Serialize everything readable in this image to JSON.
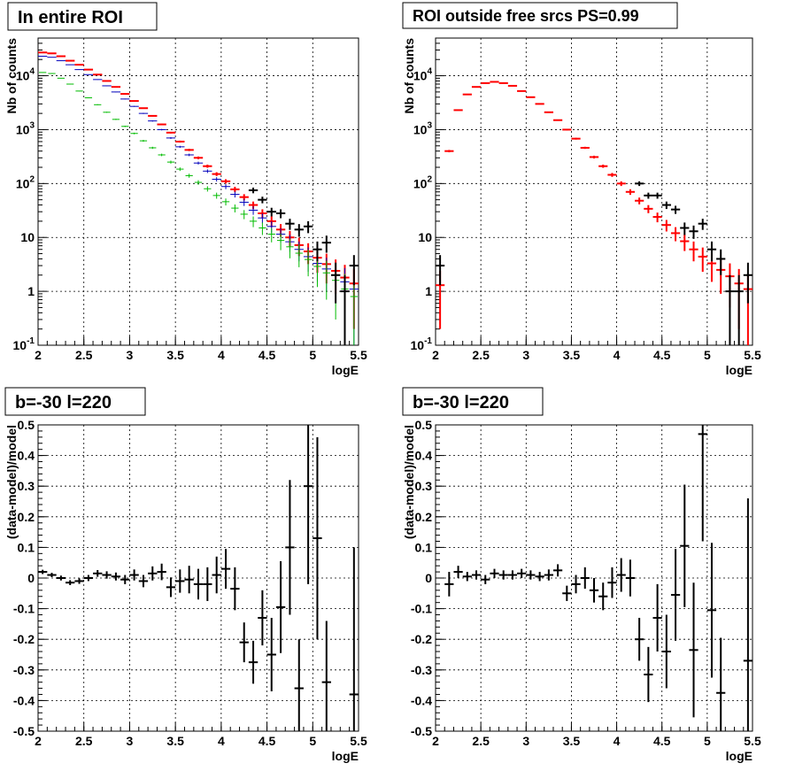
{
  "panels": {
    "top_left_title": "In entire ROI",
    "top_right_title": "ROI outside free srcs PS=0.99",
    "bottom_left_title": "b=-30 l=220",
    "bottom_right_title": "b=-30 l=220"
  },
  "chart_data": [
    {
      "type": "scatter",
      "title": "In entire ROI",
      "xlabel": "logE",
      "ylabel": "Nb of counts",
      "xlim": [
        2,
        5.5
      ],
      "ylim": [
        0.1,
        50000
      ],
      "yscale": "log",
      "grid": true,
      "x_ticks": [
        "2",
        "2.5",
        "3",
        "3.5",
        "4",
        "4.5",
        "5",
        "5.5"
      ],
      "y_ticks": [
        "10^-1",
        "1",
        "10",
        "10^2",
        "10^3",
        "10^4"
      ],
      "bin_width": 0.1,
      "series": [
        {
          "color": "#ff0000",
          "x": [
            2.05,
            2.15,
            2.25,
            2.35,
            2.45,
            2.55,
            2.65,
            2.75,
            2.85,
            2.95,
            3.05,
            3.15,
            3.25,
            3.35,
            3.45,
            3.55,
            3.65,
            3.75,
            3.85,
            3.95,
            4.05,
            4.15,
            4.25,
            4.35,
            4.45,
            4.55,
            4.65,
            4.75,
            4.85,
            4.95,
            5.05,
            5.15,
            5.25,
            5.35,
            5.45
          ],
          "values": [
            27000,
            26000,
            23000,
            19000,
            16000,
            13000,
            10500,
            8000,
            6200,
            4600,
            3400,
            2500,
            1800,
            1250,
            880,
            600,
            420,
            300,
            210,
            150,
            110,
            78,
            56,
            40,
            28,
            20,
            14,
            10,
            7.2,
            5.5,
            4.2,
            3.2,
            2.4,
            1.8,
            1.4
          ],
          "errors": [
            170,
            160,
            150,
            140,
            130,
            115,
            100,
            90,
            80,
            70,
            60,
            50,
            42,
            35,
            30,
            25,
            20,
            17,
            14,
            12,
            10,
            9,
            7.5,
            6.3,
            5.3,
            4.5,
            3.7,
            3.2,
            2.7,
            2.3,
            2,
            1.8,
            1.5,
            1.3,
            1.2
          ]
        },
        {
          "color": "#0000bb",
          "x": [
            2.05,
            2.15,
            2.25,
            2.35,
            2.45,
            2.55,
            2.65,
            2.75,
            2.85,
            2.95,
            3.05,
            3.15,
            3.25,
            3.35,
            3.45,
            3.55,
            3.65,
            3.75,
            3.85,
            3.95,
            4.05,
            4.15,
            4.25,
            4.35,
            4.45,
            4.55,
            4.65,
            4.75,
            4.85,
            4.95,
            5.05,
            5.15,
            5.25,
            5.35,
            5.45
          ],
          "values": [
            23000,
            22000,
            19000,
            16000,
            13000,
            10500,
            8500,
            6500,
            5000,
            3700,
            2700,
            2000,
            1450,
            1000,
            700,
            480,
            340,
            240,
            170,
            120,
            88,
            63,
            45,
            32,
            23,
            16,
            11.5,
            8.3,
            6,
            4.4,
            3.3,
            2.6,
            2,
            1.5,
            1.1
          ],
          "errors": [
            150,
            148,
            138,
            126,
            114,
            102,
            92,
            80,
            70,
            60,
            52,
            44,
            38,
            31,
            26,
            21,
            18,
            15,
            13,
            11,
            9.4,
            7.9,
            6.7,
            5.7,
            4.8,
            4,
            3.4,
            2.9,
            2.4,
            2.1,
            1.8,
            1.6,
            1.4,
            1.2,
            1
          ]
        },
        {
          "color": "#00bb00",
          "x": [
            2.05,
            2.15,
            2.25,
            2.35,
            2.45,
            2.55,
            2.65,
            2.75,
            2.85,
            2.95,
            3.05,
            3.15,
            3.25,
            3.35,
            3.45,
            3.55,
            3.65,
            3.75,
            3.85,
            3.95,
            4.05,
            4.15,
            4.25,
            4.35,
            4.45,
            4.55,
            4.65,
            4.75,
            4.85,
            4.95,
            5.05,
            5.15,
            5.25,
            5.35,
            5.45
          ],
          "values": [
            11500,
            11000,
            9000,
            7000,
            5200,
            3900,
            2900,
            2100,
            1550,
            1150,
            850,
            620,
            460,
            340,
            250,
            185,
            140,
            105,
            80,
            60,
            46,
            35,
            27,
            20,
            15,
            11.5,
            8.8,
            6.7,
            5.1,
            3.9,
            2.9,
            2.2,
            1.6,
            1.1,
            0.8
          ],
          "errors": [
            107,
            105,
            95,
            84,
            72,
            62,
            54,
            46,
            39,
            34,
            29,
            25,
            21,
            18,
            16,
            14,
            12,
            10,
            9,
            7.7,
            6.8,
            5.9,
            5.2,
            4.5,
            3.9,
            3.4,
            3,
            2.6,
            2.3,
            2,
            1.7,
            1.5,
            1.3,
            1,
            0.9
          ]
        },
        {
          "color": "#000000",
          "x": [
            4.35,
            4.45,
            4.55,
            4.65,
            4.75,
            4.85,
            4.95,
            5.05,
            5.15,
            5.25,
            5.35,
            5.45
          ],
          "values": [
            75,
            50,
            30,
            28,
            18,
            14,
            16,
            6,
            8,
            2,
            1,
            3
          ],
          "errors": [
            9,
            7,
            5.5,
            5.3,
            4.2,
            3.7,
            4,
            2.4,
            2.8,
            1.4,
            1,
            1.7
          ]
        }
      ]
    },
    {
      "type": "scatter",
      "title": "ROI outside free srcs PS=0.99",
      "xlabel": "logE",
      "ylabel": "Nb of counts",
      "xlim": [
        2,
        5.5
      ],
      "ylim": [
        0.1,
        50000
      ],
      "yscale": "log",
      "grid": true,
      "x_ticks": [
        "2",
        "2.5",
        "3",
        "3.5",
        "4",
        "4.5",
        "5",
        "5.5"
      ],
      "y_ticks": [
        "10^-1",
        "1",
        "10",
        "10^2",
        "10^3",
        "10^4"
      ],
      "bin_width": 0.1,
      "series": [
        {
          "color": "#ff0000",
          "x": [
            2.05,
            2.15,
            2.25,
            2.35,
            2.45,
            2.55,
            2.65,
            2.75,
            2.85,
            2.95,
            3.05,
            3.15,
            3.25,
            3.35,
            3.45,
            3.55,
            3.65,
            3.75,
            3.85,
            3.95,
            4.05,
            4.15,
            4.25,
            4.35,
            4.45,
            4.55,
            4.65,
            4.75,
            4.85,
            4.95,
            5.05,
            5.15,
            5.25,
            5.35,
            5.45
          ],
          "values": [
            1.3,
            400,
            2300,
            4500,
            6200,
            7300,
            7700,
            7300,
            6500,
            5200,
            4000,
            3000,
            2100,
            1500,
            1000,
            680,
            460,
            310,
            210,
            145,
            100,
            70,
            48,
            34,
            24,
            17,
            12,
            8.5,
            6,
            4.4,
            3.3,
            2.5,
            1.9,
            1.4,
            1.1
          ],
          "errors": [
            1.1,
            20,
            48,
            67,
            79,
            85,
            88,
            85,
            81,
            72,
            63,
            55,
            46,
            39,
            32,
            26,
            21,
            18,
            14,
            12,
            10,
            8.4,
            6.9,
            5.8,
            4.9,
            4.1,
            3.5,
            2.9,
            2.4,
            2.1,
            1.8,
            1.6,
            1.4,
            1.2,
            1
          ]
        },
        {
          "color": "#000000",
          "x": [
            2.05,
            4.25,
            4.35,
            4.45,
            4.55,
            4.65,
            4.75,
            4.85,
            4.95,
            5.05,
            5.15,
            5.25,
            5.35,
            5.45
          ],
          "values": [
            3,
            100,
            60,
            60,
            40,
            33,
            15,
            13,
            18,
            6,
            4,
            1,
            1,
            2
          ],
          "errors": [
            1.7,
            10,
            7.7,
            7.7,
            6.3,
            5.7,
            3.9,
            3.6,
            4.2,
            2.4,
            2,
            1,
            1,
            1.4
          ]
        }
      ]
    },
    {
      "type": "scatter",
      "title": "b=-30 l=220",
      "xlabel": "logE",
      "ylabel": "(data-model)/model",
      "xlim": [
        2,
        5.5
      ],
      "ylim": [
        -0.5,
        0.5
      ],
      "grid": true,
      "x_ticks": [
        "2",
        "2.5",
        "3",
        "3.5",
        "4",
        "4.5",
        "5",
        "5.5"
      ],
      "y_ticks": [
        "-0.5",
        "-0.4",
        "-0.3",
        "-0.2",
        "-0.1",
        "0",
        "0.1",
        "0.2",
        "0.3",
        "0.4",
        "0.5"
      ],
      "bin_width": 0.1,
      "series": [
        {
          "color": "#000000",
          "x": [
            2.05,
            2.15,
            2.25,
            2.35,
            2.45,
            2.55,
            2.65,
            2.75,
            2.85,
            2.95,
            3.05,
            3.15,
            3.25,
            3.35,
            3.45,
            3.55,
            3.65,
            3.75,
            3.85,
            3.95,
            4.05,
            4.15,
            4.25,
            4.35,
            4.45,
            4.55,
            4.65,
            4.75,
            4.85,
            4.95,
            5.05,
            5.15,
            5.45
          ],
          "values": [
            0.02,
            0.01,
            0.0,
            -0.015,
            -0.01,
            0.0,
            0.015,
            0.01,
            0.005,
            -0.005,
            0.01,
            -0.01,
            0.015,
            0.02,
            -0.03,
            -0.01,
            -0.005,
            -0.02,
            -0.02,
            0.01,
            0.03,
            -0.035,
            -0.21,
            -0.275,
            -0.13,
            -0.25,
            -0.095,
            0.1,
            -0.36,
            0.3,
            0.13,
            -0.34,
            -0.38
          ],
          "errors": [
            0.007,
            0.007,
            0.008,
            0.008,
            0.009,
            0.01,
            0.011,
            0.012,
            0.013,
            0.015,
            0.018,
            0.02,
            0.023,
            0.027,
            0.032,
            0.038,
            0.045,
            0.05,
            0.055,
            0.06,
            0.065,
            0.07,
            0.065,
            0.07,
            0.09,
            0.12,
            0.15,
            0.22,
            0.16,
            0.32,
            0.33,
            0.2,
            0.48
          ]
        }
      ]
    },
    {
      "type": "scatter",
      "title": "b=-30 l=220",
      "xlabel": "logE",
      "ylabel": "(data-model)/model",
      "xlim": [
        2,
        5.5
      ],
      "ylim": [
        -0.5,
        0.5
      ],
      "grid": true,
      "x_ticks": [
        "2",
        "2.5",
        "3",
        "3.5",
        "4",
        "4.5",
        "5",
        "5.5"
      ],
      "y_ticks": [
        "-0.5",
        "-0.4",
        "-0.3",
        "-0.2",
        "-0.1",
        "0",
        "0.1",
        "0.2",
        "0.3",
        "0.4",
        "0.5"
      ],
      "bin_width": 0.1,
      "series": [
        {
          "color": "#000000",
          "x": [
            2.15,
            2.25,
            2.35,
            2.45,
            2.55,
            2.65,
            2.75,
            2.85,
            2.95,
            3.05,
            3.15,
            3.25,
            3.35,
            3.45,
            3.55,
            3.65,
            3.75,
            3.85,
            3.95,
            4.05,
            4.15,
            4.25,
            4.35,
            4.45,
            4.55,
            4.65,
            4.75,
            4.85,
            4.95,
            5.05,
            5.15,
            5.45
          ],
          "values": [
            -0.02,
            0.02,
            0.005,
            0.01,
            -0.005,
            0.015,
            0.01,
            0.01,
            0.015,
            0.01,
            0.005,
            0.01,
            0.025,
            -0.05,
            -0.02,
            0.0,
            -0.04,
            -0.06,
            -0.015,
            0.01,
            0.0,
            -0.2,
            -0.315,
            -0.13,
            -0.24,
            -0.055,
            0.105,
            -0.235,
            0.47,
            -0.105,
            -0.375,
            -0.27
          ],
          "errors": [
            0.04,
            0.02,
            0.015,
            0.015,
            0.015,
            0.015,
            0.015,
            0.015,
            0.015,
            0.015,
            0.015,
            0.018,
            0.02,
            0.025,
            0.03,
            0.035,
            0.04,
            0.045,
            0.05,
            0.055,
            0.06,
            0.07,
            0.09,
            0.11,
            0.12,
            0.15,
            0.2,
            0.22,
            0.35,
            0.22,
            0.18,
            0.53
          ]
        }
      ]
    }
  ]
}
